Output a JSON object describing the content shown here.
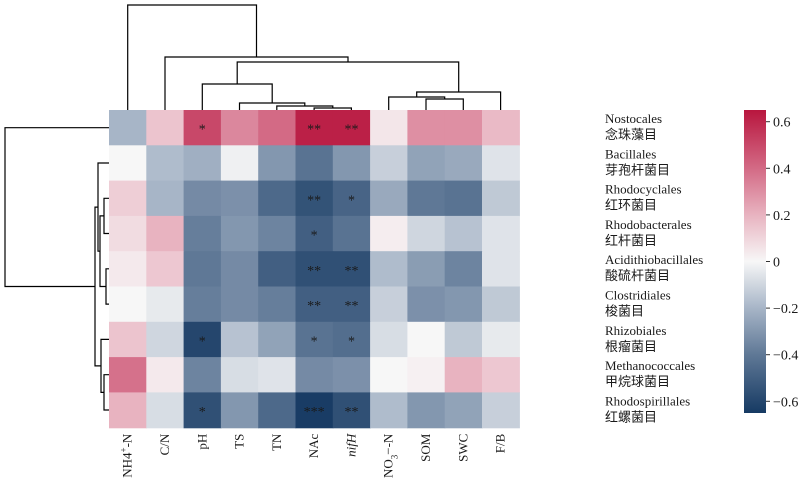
{
  "chart_data": {
    "type": "heatmap",
    "columns": [
      {
        "id": "nh4n",
        "parts": [
          {
            "t": "NH4",
            "s": "base"
          },
          {
            "t": "+",
            "s": "sup"
          },
          {
            "t": "-N",
            "s": "base"
          }
        ]
      },
      {
        "id": "cn",
        "parts": [
          {
            "t": "C/N",
            "s": "base"
          }
        ]
      },
      {
        "id": "ph",
        "parts": [
          {
            "t": "pH",
            "s": "base"
          }
        ]
      },
      {
        "id": "ts",
        "parts": [
          {
            "t": "TS",
            "s": "base"
          }
        ]
      },
      {
        "id": "tn",
        "parts": [
          {
            "t": "TN",
            "s": "base"
          }
        ]
      },
      {
        "id": "nac",
        "parts": [
          {
            "t": "NAc",
            "s": "base"
          }
        ]
      },
      {
        "id": "nifh",
        "parts": [
          {
            "t": "nifH",
            "s": "italic"
          }
        ]
      },
      {
        "id": "no3n",
        "parts": [
          {
            "t": "NO",
            "s": "base"
          },
          {
            "t": "3",
            "s": "sub"
          },
          {
            "t": "−-N",
            "s": "base"
          }
        ]
      },
      {
        "id": "som",
        "parts": [
          {
            "t": "SOM",
            "s": "base"
          }
        ]
      },
      {
        "id": "swc",
        "parts": [
          {
            "t": "SWC",
            "s": "base"
          }
        ]
      },
      {
        "id": "fb",
        "parts": [
          {
            "t": "F/B",
            "s": "base"
          }
        ]
      }
    ],
    "rows": [
      {
        "en": "Nostocales",
        "zh": "念珠藻目"
      },
      {
        "en": "Bacillales",
        "zh": "芽孢杆菌目"
      },
      {
        "en": "Rhodocyclales",
        "zh": "红环菌目"
      },
      {
        "en": "Rhodobacterales",
        "zh": "红杆菌目"
      },
      {
        "en": "Acidithiobacillales",
        "zh": "酸硫杆菌目"
      },
      {
        "en": "Clostridiales",
        "zh": "梭菌目"
      },
      {
        "en": "Rhizobiales",
        "zh": "根瘤菌目"
      },
      {
        "en": "Methanococcales",
        "zh": "甲烷球菌目"
      },
      {
        "en": "Rhodospirillales",
        "zh": "红螺菌目"
      }
    ],
    "values": [
      [
        -0.2,
        0.15,
        0.5,
        0.32,
        0.4,
        0.62,
        0.62,
        0.05,
        0.3,
        0.3,
        0.18
      ],
      [
        0.0,
        -0.18,
        -0.22,
        -0.02,
        -0.3,
        -0.42,
        -0.3,
        -0.12,
        -0.26,
        -0.24,
        -0.06
      ],
      [
        0.12,
        -0.2,
        -0.34,
        -0.32,
        -0.46,
        -0.55,
        -0.48,
        -0.24,
        -0.4,
        -0.42,
        -0.14
      ],
      [
        0.08,
        0.2,
        -0.38,
        -0.3,
        -0.36,
        -0.5,
        -0.42,
        0.03,
        -0.1,
        -0.16,
        -0.06
      ],
      [
        0.04,
        0.14,
        -0.4,
        -0.34,
        -0.5,
        -0.56,
        -0.56,
        -0.18,
        -0.28,
        -0.36,
        -0.06
      ],
      [
        0.0,
        -0.04,
        -0.38,
        -0.34,
        -0.38,
        -0.5,
        -0.5,
        -0.12,
        -0.32,
        -0.3,
        -0.14
      ],
      [
        0.15,
        -0.1,
        -0.6,
        -0.16,
        -0.26,
        -0.42,
        -0.44,
        -0.08,
        0.0,
        -0.14,
        -0.04
      ],
      [
        0.38,
        0.04,
        -0.36,
        -0.08,
        -0.06,
        -0.34,
        -0.32,
        0.0,
        0.02,
        0.2,
        0.14
      ],
      [
        0.2,
        -0.08,
        -0.56,
        -0.3,
        -0.46,
        -0.64,
        -0.56,
        -0.18,
        -0.3,
        -0.26,
        -0.12
      ]
    ],
    "significance": [
      [
        "",
        "",
        "*",
        "",
        "",
        "**",
        "**",
        "",
        "",
        "",
        ""
      ],
      [
        "",
        "",
        "",
        "",
        "",
        "",
        "",
        "",
        "",
        "",
        ""
      ],
      [
        "",
        "",
        "",
        "",
        "",
        "**",
        "*",
        "",
        "",
        "",
        ""
      ],
      [
        "",
        "",
        "",
        "",
        "",
        "*",
        "",
        "",
        "",
        "",
        ""
      ],
      [
        "",
        "",
        "",
        "",
        "",
        "**",
        "**",
        "",
        "",
        "",
        ""
      ],
      [
        "",
        "",
        "",
        "",
        "",
        "**",
        "**",
        "",
        "",
        "",
        ""
      ],
      [
        "",
        "",
        "*",
        "",
        "",
        "*",
        "*",
        "",
        "",
        "",
        ""
      ],
      [
        "",
        "",
        "",
        "",
        "",
        "",
        "",
        "",
        "",
        "",
        ""
      ],
      [
        "",
        "",
        "*",
        "",
        "",
        "***",
        "**",
        "",
        "",
        "",
        ""
      ]
    ],
    "color_scale": {
      "min": -0.65,
      "max": 0.65,
      "stops": [
        {
          "v": -0.65,
          "color": "#163a63"
        },
        {
          "v": -0.4,
          "color": "#5f7896"
        },
        {
          "v": -0.2,
          "color": "#a7b5c7"
        },
        {
          "v": 0.0,
          "color": "#f7f7f7"
        },
        {
          "v": 0.2,
          "color": "#e8b3c0"
        },
        {
          "v": 0.4,
          "color": "#d36a85"
        },
        {
          "v": 0.65,
          "color": "#b8163e"
        }
      ]
    },
    "colorbar_ticks": [
      "0.6",
      "0.4",
      "0.2",
      "0",
      "−0.2",
      "−0.4",
      "−0.6"
    ],
    "colorbar_tick_values": [
      0.6,
      0.4,
      0.2,
      0.0,
      -0.2,
      -0.4,
      -0.6
    ]
  }
}
